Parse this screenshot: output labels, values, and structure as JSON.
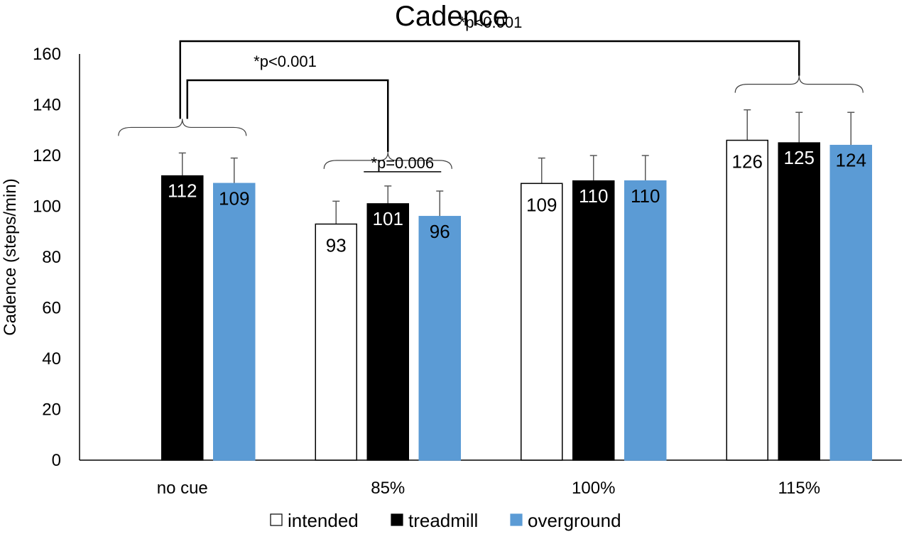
{
  "chart_data": {
    "type": "bar",
    "title": "Cadence",
    "ylabel": "Cadence (steps/min)",
    "xlabel": "",
    "ylim": [
      0,
      160
    ],
    "yticks": [
      0,
      20,
      40,
      60,
      80,
      100,
      120,
      140,
      160
    ],
    "grid": false,
    "legend_position": "bottom",
    "categories": [
      "no cue",
      "85%",
      "100%",
      "115%"
    ],
    "series": [
      {
        "name": "intended",
        "color": "#ffffff",
        "values": [
          null,
          93,
          109,
          126
        ],
        "errors": [
          null,
          9,
          10,
          12
        ],
        "labels": [
          "",
          "93",
          "109",
          "126"
        ]
      },
      {
        "name": "treadmill",
        "color": "#000000",
        "values": [
          112,
          101,
          110,
          125
        ],
        "errors": [
          9,
          7,
          10,
          12
        ],
        "labels": [
          "112",
          "101",
          "110",
          "125"
        ]
      },
      {
        "name": "overground",
        "color": "#5b9bd5",
        "values": [
          109,
          96,
          110,
          124
        ],
        "errors": [
          10,
          10,
          10,
          13
        ],
        "labels": [
          "109",
          "96",
          "110",
          "124"
        ]
      }
    ],
    "annotations": [
      {
        "text": "*p<0.001",
        "from": "no cue",
        "to": "115%"
      },
      {
        "text": "*p<0.001",
        "from": "no cue",
        "to": "85%"
      },
      {
        "text": "*p=0.006",
        "within": "85%",
        "between": [
          "treadmill",
          "overground"
        ]
      }
    ]
  }
}
